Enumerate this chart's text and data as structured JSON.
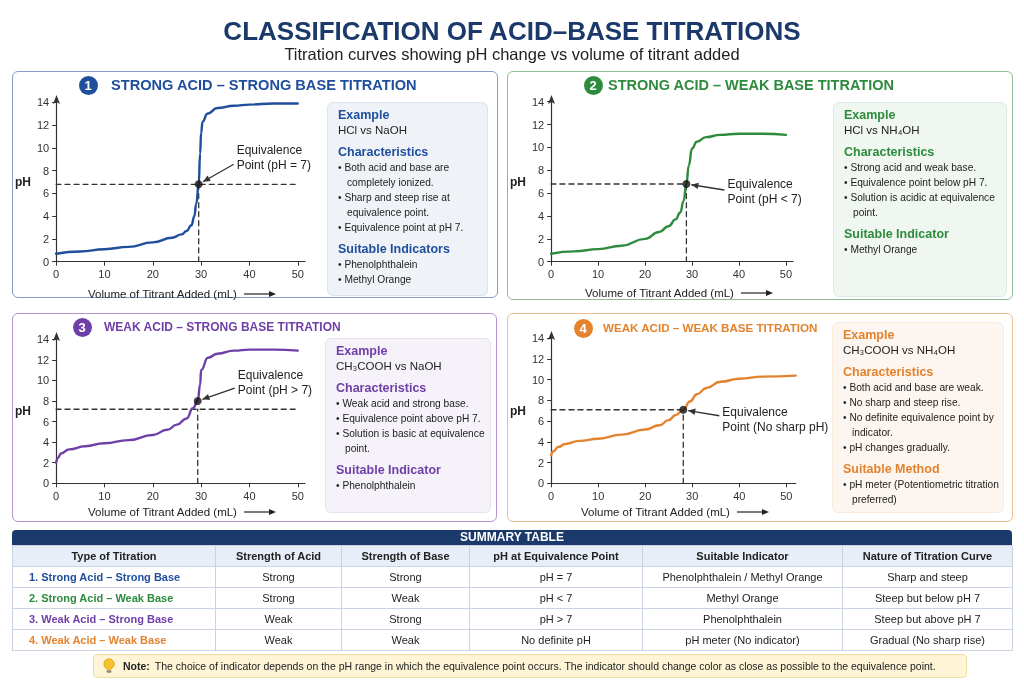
{
  "chart_data": [
    {
      "type": "other",
      "title": "CLASSIFICATION OF ACID–BASE TITRATIONS",
      "subtitle": "Titration curves showing pH change vs volume of titrant added"
    },
    {
      "type": "line",
      "title": "STRONG ACID – STRONG BASE TITRATION",
      "xlabel": "Volume of Titrant Added (mL)",
      "ylabel": "pH",
      "xlim": [
        0,
        51.5
      ],
      "xticks": [
        0,
        10,
        20,
        30,
        40,
        50
      ],
      "ylim": [
        0,
        14
      ],
      "yticks": [
        0,
        2,
        4,
        6,
        8,
        10,
        12,
        14
      ],
      "annotations": [
        "1",
        {
          "text": "Equivalence Point (pH = 7)",
          "x": 29.5,
          "y": 6.8
        }
      ],
      "series": [
        {
          "color": "#1f4e9c",
          "x": [
            0,
            5,
            10,
            15,
            20,
            24,
            26,
            27,
            28,
            28.6,
            29,
            29.5,
            29.8,
            30,
            30.3,
            31.3,
            33.4,
            36.8,
            40,
            45,
            50
          ],
          "values": [
            0.7,
            0.9,
            1.1,
            1.3,
            1.7,
            2.1,
            2.4,
            2.7,
            3.2,
            4.0,
            5.1,
            6.8,
            9.5,
            11.3,
            12.3,
            13.0,
            13.5,
            13.7,
            13.8,
            13.9,
            13.9
          ]
        },
        {
          "type": "line",
          "color": "#333333",
          "line_style": "dashed",
          "x": [
            0,
            50
          ],
          "values": [
            6.8,
            6.8
          ]
        },
        {
          "type": "line",
          "color": "#333333",
          "line_style": "dashed",
          "x": [
            29.5,
            29.5
          ],
          "values": [
            0,
            6.8
          ]
        },
        {
          "type": "scatter",
          "color": "#111111",
          "marker": "circle",
          "x": [
            29.5
          ],
          "values": [
            6.8
          ]
        }
      ]
    },
    {
      "type": "other",
      "annotations": [
        "Example",
        "HCl vs NaOH",
        "Characteristics",
        "• Both acid and base are completely ionized.",
        "• Sharp and steep rise at equivalence point.",
        "• Equivalence point at pH 7.",
        "Suitable Indicators",
        "• Phenolphthalein",
        "• Methyl Orange"
      ]
    },
    {
      "type": "line",
      "title": "STRONG ACID – WEAK BASE TITRATION",
      "xlabel": "Volume of Titrant Added (mL)",
      "ylabel": "pH",
      "xlim": [
        0,
        51.5
      ],
      "xticks": [
        0,
        10,
        20,
        30,
        40,
        50
      ],
      "ylim": [
        0,
        14
      ],
      "yticks": [
        0,
        2,
        4,
        6,
        8,
        10,
        12,
        14
      ],
      "annotations": [
        "2",
        {
          "text": "Equivalence Point (pH < 7)",
          "x": 28.8,
          "y": 6.8
        }
      ],
      "series": [
        {
          "color": "#2e8b3e",
          "x": [
            0,
            5,
            10,
            15,
            20,
            23,
            25,
            26.5,
            27.5,
            28.2,
            28.8,
            29.3,
            30,
            31,
            33,
            36,
            40,
            45,
            50
          ],
          "values": [
            0.7,
            0.9,
            1.1,
            1.4,
            2.0,
            2.6,
            3.1,
            3.7,
            4.3,
            5.3,
            6.8,
            8.4,
            9.9,
            10.5,
            10.9,
            11.1,
            11.2,
            11.2,
            11.1
          ]
        },
        {
          "type": "line",
          "color": "#333333",
          "line_style": "dashed",
          "x": [
            0,
            28.8
          ],
          "values": [
            6.8,
            6.8
          ]
        },
        {
          "type": "line",
          "color": "#333333",
          "line_style": "dashed",
          "x": [
            28.8,
            28.8
          ],
          "values": [
            0,
            6.8
          ]
        },
        {
          "type": "scatter",
          "color": "#111111",
          "marker": "circle",
          "x": [
            28.8
          ],
          "values": [
            6.8
          ]
        }
      ]
    },
    {
      "type": "other",
      "annotations": [
        "Example",
        "HCl vs NH₄OH",
        "Characteristics",
        "• Strong acid and weak base.",
        "• Equivalence point below pH 7.",
        "• Solution is acidic at equivalence point.",
        "Suitable Indicator",
        "• Methyl Orange"
      ]
    },
    {
      "type": "line",
      "title": "WEAK ACID – STRONG BASE TITRATION",
      "xlabel": "Volume of Titrant Added (mL)",
      "ylabel": "pH",
      "xlim": [
        0,
        51.5
      ],
      "xticks": [
        0,
        10,
        20,
        30,
        40,
        50
      ],
      "ylim": [
        0,
        14
      ],
      "yticks": [
        0,
        2,
        4,
        6,
        8,
        10,
        12,
        14
      ],
      "annotations": [
        "3",
        {
          "text": "Equivalence Point (pH > 7)",
          "x": 29.3,
          "y": 8.0
        }
      ],
      "series": [
        {
          "color": "#6f3fa8",
          "x": [
            0,
            0.4,
            1,
            2.7,
            6,
            10,
            15,
            20,
            23,
            25,
            27,
            28.3,
            29.3,
            29.8,
            30,
            31.4,
            33.4,
            36.8,
            40,
            45,
            50
          ],
          "values": [
            2.0,
            2.5,
            2.9,
            3.3,
            3.6,
            3.9,
            4.2,
            4.7,
            5.2,
            5.7,
            6.3,
            7.3,
            8.0,
            9.6,
            11.0,
            12.2,
            12.6,
            12.9,
            13.0,
            13.0,
            12.9
          ]
        },
        {
          "type": "line",
          "color": "#333333",
          "line_style": "dashed",
          "x": [
            0,
            50
          ],
          "values": [
            7.2,
            7.2
          ]
        },
        {
          "type": "line",
          "color": "#333333",
          "line_style": "dashed",
          "x": [
            29.3,
            29.3
          ],
          "values": [
            0,
            7.2
          ]
        },
        {
          "type": "scatter",
          "color": "#111111",
          "marker": "circle",
          "x": [
            29.3
          ],
          "values": [
            8.0
          ]
        }
      ]
    },
    {
      "type": "other",
      "annotations": [
        "Example",
        "CH₃COOH vs NaOH",
        "Characteristics",
        "• Weak acid and strong base.",
        "• Equivalence point above pH 7.",
        "• Solution is basic at equivalence point.",
        "Suitable Indicator",
        "• Phenolphthalein"
      ]
    },
    {
      "type": "line",
      "title": "WEAK ACID – WEAK BASE TITRATION",
      "xlabel": "Volume of Titrant Added (mL)",
      "ylabel": "pH",
      "xlim": [
        0,
        52
      ],
      "xticks": [
        0,
        10,
        20,
        30,
        40,
        50
      ],
      "ylim": [
        0,
        14
      ],
      "yticks": [
        0,
        2,
        4,
        6,
        8,
        10,
        12,
        14
      ],
      "annotations": [
        "4",
        {
          "text": "Equivalence Point (No sharp pH)",
          "x": 28.1,
          "y": 7.1
        }
      ],
      "series": [
        {
          "color": "#e3832d",
          "x": [
            0,
            0.5,
            1.5,
            3,
            6,
            10,
            15,
            20,
            23,
            25,
            26.5,
            28.1,
            29.5,
            31,
            33,
            36,
            40,
            45,
            52
          ],
          "values": [
            2.7,
            3.1,
            3.5,
            3.8,
            4.1,
            4.3,
            4.7,
            5.2,
            5.6,
            6.1,
            6.6,
            7.1,
            7.9,
            8.6,
            9.2,
            9.8,
            10.1,
            10.3,
            10.4
          ]
        },
        {
          "type": "line",
          "color": "#333333",
          "line_style": "dashed",
          "x": [
            0,
            28.1
          ],
          "values": [
            7.1,
            7.1
          ]
        },
        {
          "type": "line",
          "color": "#333333",
          "line_style": "dashed",
          "x": [
            28.1,
            28.1
          ],
          "values": [
            0,
            7.1
          ]
        },
        {
          "type": "scatter",
          "color": "#111111",
          "marker": "circle",
          "x": [
            28.1
          ],
          "values": [
            7.1
          ]
        }
      ]
    },
    {
      "type": "other",
      "annotations": [
        "Example",
        "CH₃COOH vs NH₄OH",
        "Characteristics",
        "• Both acid and base are weak.",
        "• No sharp and steep rise.",
        "• No definite equivalence point by indicator.",
        "• pH changes gradually.",
        "Suitable Method",
        "• pH meter (Potentiometric titration preferred)"
      ]
    },
    {
      "type": "other",
      "title": "SUMMARY TABLE",
      "annotations": [
        "Type of Titration",
        "Strength of Acid",
        "Strength of Base",
        "pH at Equivalence Point",
        "Suitable Indicator",
        "Nature of Titration Curve",
        "1. Strong Acid – Strong Base",
        "Strong",
        "Strong",
        "pH = 7",
        "Phenolphthalein / Methyl Orange",
        "Sharp and steep",
        "2. Strong Acid – Weak Base",
        "Strong",
        "Weak",
        "pH < 7",
        "Methyl Orange",
        "Steep but below pH 7",
        "3. Weak Acid – Strong Base",
        "Weak",
        "Strong",
        "pH > 7",
        "Phenolphthalein",
        "Steep but above pH 7",
        "4. Weak Acid – Weak Base",
        "Weak",
        "Weak",
        "No definite pH",
        "pH meter (No indicator)",
        "Gradual (No sharp rise)"
      ]
    },
    {
      "type": "other",
      "annotations": [
        "Note:",
        "The choice of indicator depends on the pH range in which the equivalence point occurs. The indicator should change color as close as possible to the equivalence point."
      ]
    }
  ]
}
